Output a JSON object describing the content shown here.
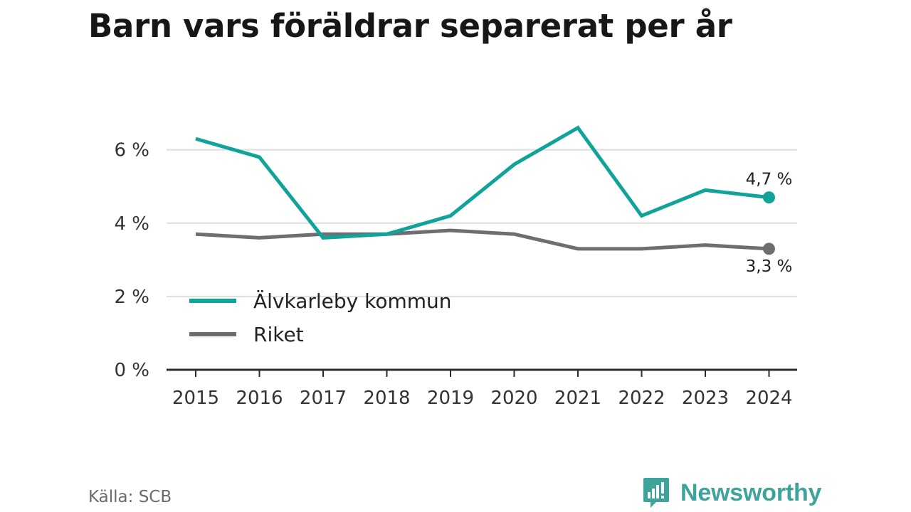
{
  "chart_data": {
    "type": "line",
    "title": "Barn vars föräldrar separerat per år",
    "xlabel": "",
    "ylabel": "",
    "x": [
      "2015",
      "2016",
      "2017",
      "2018",
      "2019",
      "2020",
      "2021",
      "2022",
      "2023",
      "2024"
    ],
    "ylim": [
      0,
      6
    ],
    "yticks": [
      0,
      2,
      4,
      6
    ],
    "ytick_labels": [
      "0 %",
      "2 %",
      "4 %",
      "6 %"
    ],
    "grid": true,
    "legend_position": "lower-left",
    "series": [
      {
        "name": "Älvkarleby kommun",
        "color": "#0fa39a",
        "values": [
          6.3,
          5.8,
          3.6,
          3.7,
          4.2,
          5.6,
          6.6,
          4.2,
          4.9,
          4.7
        ],
        "end_label": "4,7 %"
      },
      {
        "name": "Riket",
        "color": "#6e6d72",
        "values": [
          3.7,
          3.6,
          3.7,
          3.7,
          3.8,
          3.7,
          3.3,
          3.3,
          3.4,
          3.3
        ],
        "end_label": "3,3 %"
      }
    ]
  },
  "footer": {
    "source": "Källa: SCB",
    "brand": "Newsworthy",
    "brand_icon": "newsworthy-logo-icon",
    "brand_color": "#3ea39b"
  }
}
